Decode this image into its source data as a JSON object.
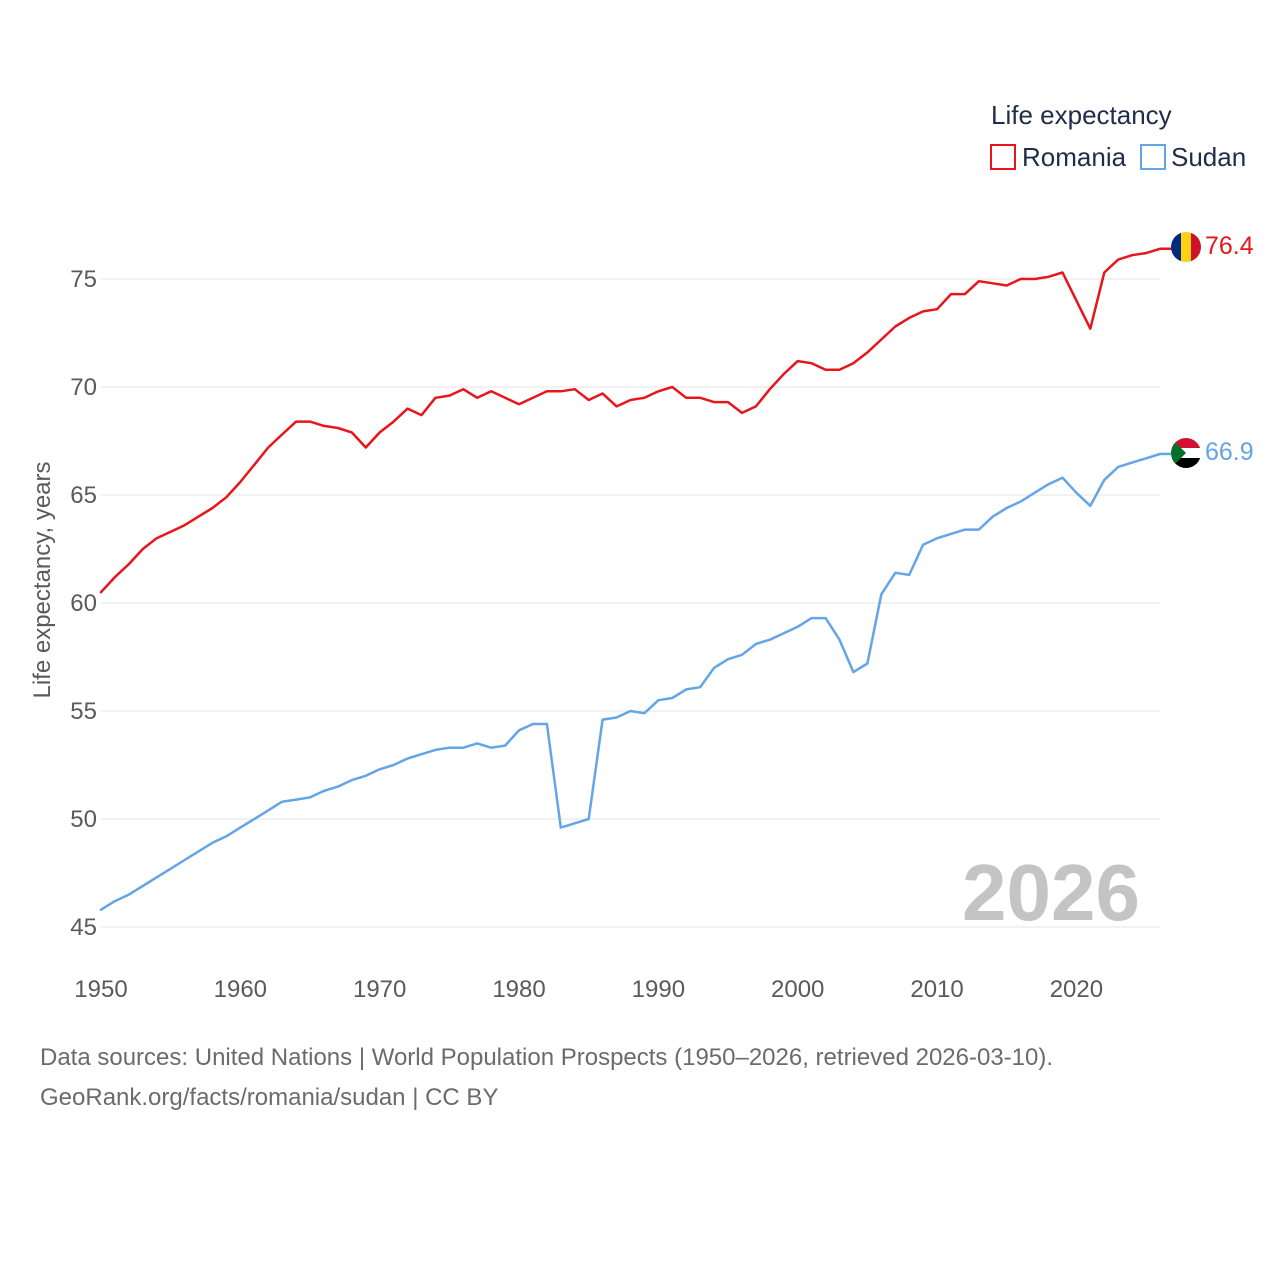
{
  "chart_data": {
    "type": "line",
    "title": "Life expectancy",
    "ylabel": "Life expectancy, years",
    "xlabel": "",
    "xlim": [
      1950,
      2026
    ],
    "ylim": [
      45,
      78
    ],
    "x_ticks": [
      1950,
      1960,
      1970,
      1980,
      1990,
      2000,
      2010,
      2020
    ],
    "y_ticks": [
      45,
      50,
      55,
      60,
      65,
      70,
      75
    ],
    "legend": [
      "Romania",
      "Sudan"
    ],
    "legend_position": "top-right",
    "current_year_label": "2026",
    "x": [
      1950,
      1951,
      1952,
      1953,
      1954,
      1955,
      1956,
      1957,
      1958,
      1959,
      1960,
      1961,
      1962,
      1963,
      1964,
      1965,
      1966,
      1967,
      1968,
      1969,
      1970,
      1971,
      1972,
      1973,
      1974,
      1975,
      1976,
      1977,
      1978,
      1979,
      1980,
      1981,
      1982,
      1983,
      1984,
      1985,
      1986,
      1987,
      1988,
      1989,
      1990,
      1991,
      1992,
      1993,
      1994,
      1995,
      1996,
      1997,
      1998,
      1999,
      2000,
      2001,
      2002,
      2003,
      2004,
      2005,
      2006,
      2007,
      2008,
      2009,
      2010,
      2011,
      2012,
      2013,
      2014,
      2015,
      2016,
      2017,
      2018,
      2019,
      2020,
      2021,
      2022,
      2023,
      2024,
      2025,
      2026
    ],
    "series": [
      {
        "name": "Romania",
        "color": "#e8151b",
        "end_label": "76.4",
        "values": [
          60.5,
          61.2,
          61.8,
          62.5,
          63.0,
          63.3,
          63.6,
          64.0,
          64.4,
          64.9,
          65.6,
          66.4,
          67.2,
          67.8,
          68.4,
          68.4,
          68.2,
          68.1,
          67.9,
          67.2,
          67.9,
          68.4,
          69.0,
          68.7,
          69.5,
          69.6,
          69.9,
          69.5,
          69.8,
          69.5,
          69.2,
          69.5,
          69.8,
          69.8,
          69.9,
          69.4,
          69.7,
          69.1,
          69.4,
          69.5,
          69.8,
          70.0,
          69.5,
          69.5,
          69.3,
          69.3,
          68.8,
          69.1,
          69.9,
          70.6,
          71.2,
          71.1,
          70.8,
          70.8,
          71.1,
          71.6,
          72.2,
          72.8,
          73.2,
          73.5,
          73.6,
          74.3,
          74.3,
          74.9,
          74.8,
          74.7,
          75.0,
          75.0,
          75.1,
          75.3,
          74.0,
          72.7,
          75.3,
          75.9,
          76.1,
          76.2,
          76.4
        ]
      },
      {
        "name": "Sudan",
        "color": "#63a5e6",
        "end_label": "66.9",
        "values": [
          45.8,
          46.2,
          46.5,
          46.9,
          47.3,
          47.7,
          48.1,
          48.5,
          48.9,
          49.2,
          49.6,
          50.0,
          50.4,
          50.8,
          50.9,
          51.0,
          51.3,
          51.5,
          51.8,
          52.0,
          52.3,
          52.5,
          52.8,
          53.0,
          53.2,
          53.3,
          53.3,
          53.5,
          53.3,
          53.4,
          54.1,
          54.4,
          54.4,
          49.6,
          49.8,
          50.0,
          54.6,
          54.7,
          55.0,
          54.9,
          55.5,
          55.6,
          56.0,
          56.1,
          57.0,
          57.4,
          57.6,
          58.1,
          58.3,
          58.6,
          58.9,
          59.3,
          59.3,
          58.3,
          56.8,
          57.2,
          60.4,
          61.4,
          61.3,
          62.7,
          63.0,
          63.2,
          63.4,
          63.4,
          64.0,
          64.4,
          64.7,
          65.1,
          65.5,
          65.8,
          65.1,
          64.5,
          65.7,
          66.3,
          66.5,
          66.7,
          66.9
        ]
      }
    ]
  },
  "footer": {
    "line1": "Data sources: United Nations | World Population Prospects (1950–2026, retrieved 2026-03-10).",
    "line2": "GeoRank.org/facts/romania/sudan | CC BY"
  }
}
